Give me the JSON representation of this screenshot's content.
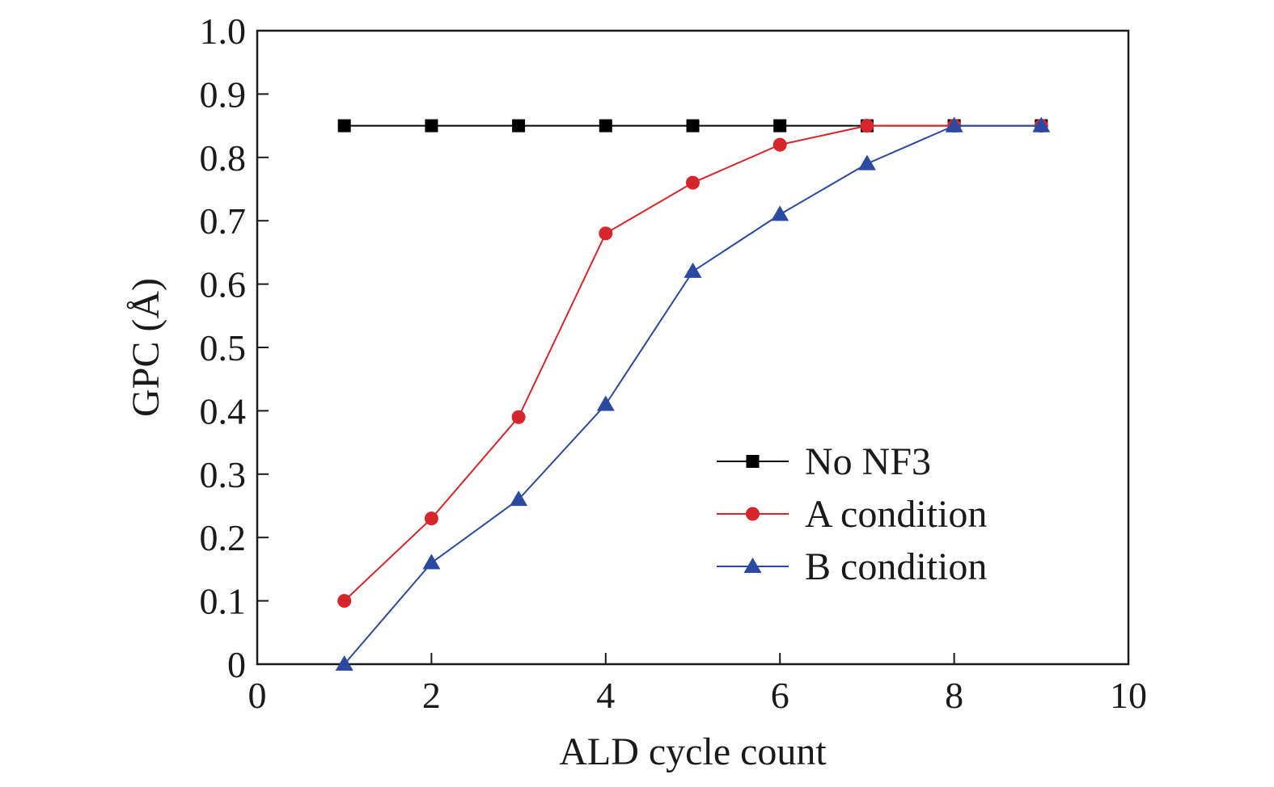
{
  "chart_data": {
    "type": "line",
    "xlabel": "ALD cycle count",
    "ylabel": "GPC (Å)",
    "xlim": [
      0,
      10
    ],
    "ylim": [
      0,
      1.0
    ],
    "x_ticks": [
      0,
      2,
      4,
      6,
      8,
      10
    ],
    "x_tick_labels": [
      "0",
      "2",
      "4",
      "6",
      "8",
      "10"
    ],
    "y_ticks": [
      0,
      0.1,
      0.2,
      0.3,
      0.4,
      0.5,
      0.6,
      0.7,
      0.8,
      0.9,
      1.0
    ],
    "y_tick_labels": [
      "0",
      "0.1",
      "0.2",
      "0.3",
      "0.4",
      "0.5",
      "0.6",
      "0.7",
      "0.8",
      "0.9",
      "1.0"
    ],
    "grid": false,
    "legend_position": "bottom-right",
    "x": [
      1,
      2,
      3,
      4,
      5,
      6,
      7,
      8,
      9
    ],
    "series": [
      {
        "name": "No NF3",
        "color": "#000000",
        "marker": "square",
        "values": [
          0.85,
          0.85,
          0.85,
          0.85,
          0.85,
          0.85,
          0.85,
          0.85,
          0.85
        ]
      },
      {
        "name": "A condition",
        "color": "#d7262b",
        "marker": "circle",
        "values": [
          0.1,
          0.23,
          0.39,
          0.68,
          0.76,
          0.82,
          0.85,
          0.85,
          0.85
        ]
      },
      {
        "name": "B condition",
        "color": "#2b48a3",
        "marker": "triangle",
        "values": [
          0.0,
          0.16,
          0.26,
          0.41,
          0.62,
          0.71,
          0.79,
          0.85,
          0.85
        ]
      }
    ]
  }
}
